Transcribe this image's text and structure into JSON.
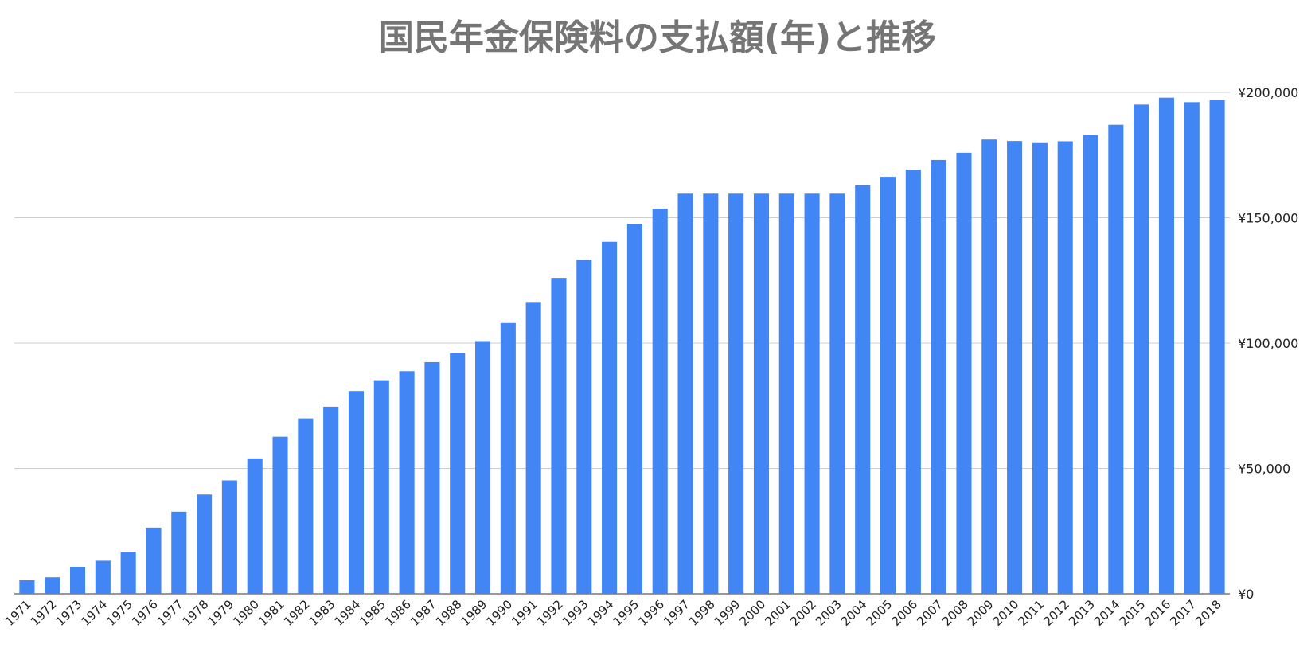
{
  "chart_data": {
    "type": "bar",
    "title": "国民年金保険料の支払額(年)と推移",
    "categories": [
      "1971",
      "1972",
      "1973",
      "1974",
      "1975",
      "1976",
      "1977",
      "1978",
      "1979",
      "1980",
      "1981",
      "1982",
      "1983",
      "1984",
      "1985",
      "1986",
      "1987",
      "1988",
      "1989",
      "1990",
      "1991",
      "1992",
      "1993",
      "1994",
      "1995",
      "1996",
      "1997",
      "1998",
      "1999",
      "2000",
      "2001",
      "2002",
      "2003",
      "2004",
      "2005",
      "2006",
      "2007",
      "2008",
      "2009",
      "2010",
      "2011",
      "2012",
      "2013",
      "2014",
      "2015",
      "2016",
      "2017",
      "2018"
    ],
    "values": [
      5400,
      6600,
      10800,
      13200,
      16800,
      26400,
      32760,
      39600,
      45240,
      54000,
      62640,
      69960,
      74640,
      80880,
      85200,
      88800,
      92400,
      96000,
      100800,
      108000,
      116400,
      126000,
      133200,
      140400,
      147600,
      153600,
      159600,
      159600,
      159600,
      159600,
      159600,
      159600,
      159600,
      162960,
      166320,
      169200,
      173040,
      175920,
      181200,
      180600,
      179760,
      180480,
      183000,
      187080,
      195120,
      197880,
      196080,
      196920
    ],
    "color": "#4285f4",
    "ylim": [
      0,
      200000
    ],
    "yticks": [
      {
        "value": 0,
        "label": "¥0"
      },
      {
        "value": 50000,
        "label": "¥50,000"
      },
      {
        "value": 100000,
        "label": "¥100,000"
      },
      {
        "value": 150000,
        "label": "¥150,000"
      },
      {
        "value": 200000,
        "label": "¥200,000"
      }
    ],
    "grid": true
  }
}
